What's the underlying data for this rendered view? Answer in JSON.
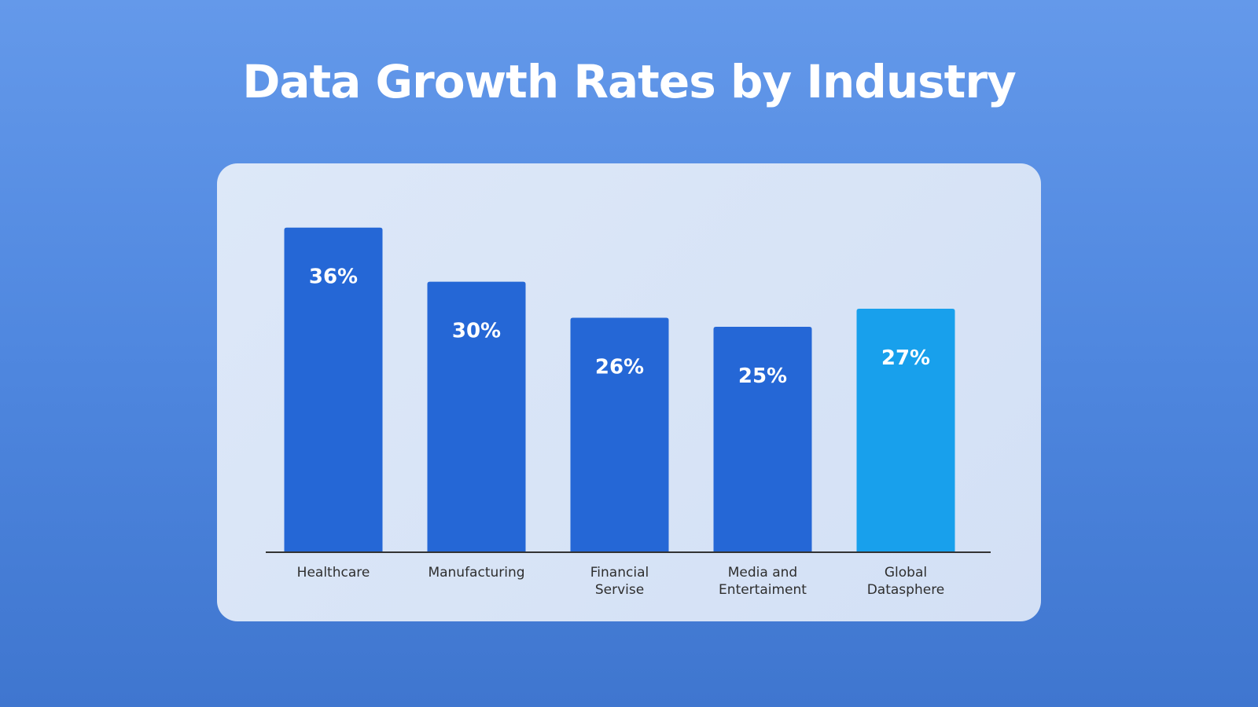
{
  "title": "Data Growth Rates by Industry",
  "colors": {
    "bar": "#2567d6",
    "highlight_bar": "#18a0ec",
    "axis": "#333333"
  },
  "chart_data": {
    "type": "bar",
    "title": "Data Growth Rates by Industry",
    "xlabel": "",
    "ylabel": "",
    "categories": [
      [
        "Healthcare"
      ],
      [
        "Manufacturing"
      ],
      [
        "Financial",
        "Servise"
      ],
      [
        "Media and",
        "Entertaiment"
      ],
      [
        "Global",
        "Datasphere"
      ]
    ],
    "values": [
      36,
      30,
      26,
      25,
      27
    ],
    "value_labels": [
      "36%",
      "30%",
      "26%",
      "25%",
      "27%"
    ],
    "highlight_index": 4,
    "ylim": [
      0,
      40
    ],
    "grid": false,
    "legend": "none"
  }
}
